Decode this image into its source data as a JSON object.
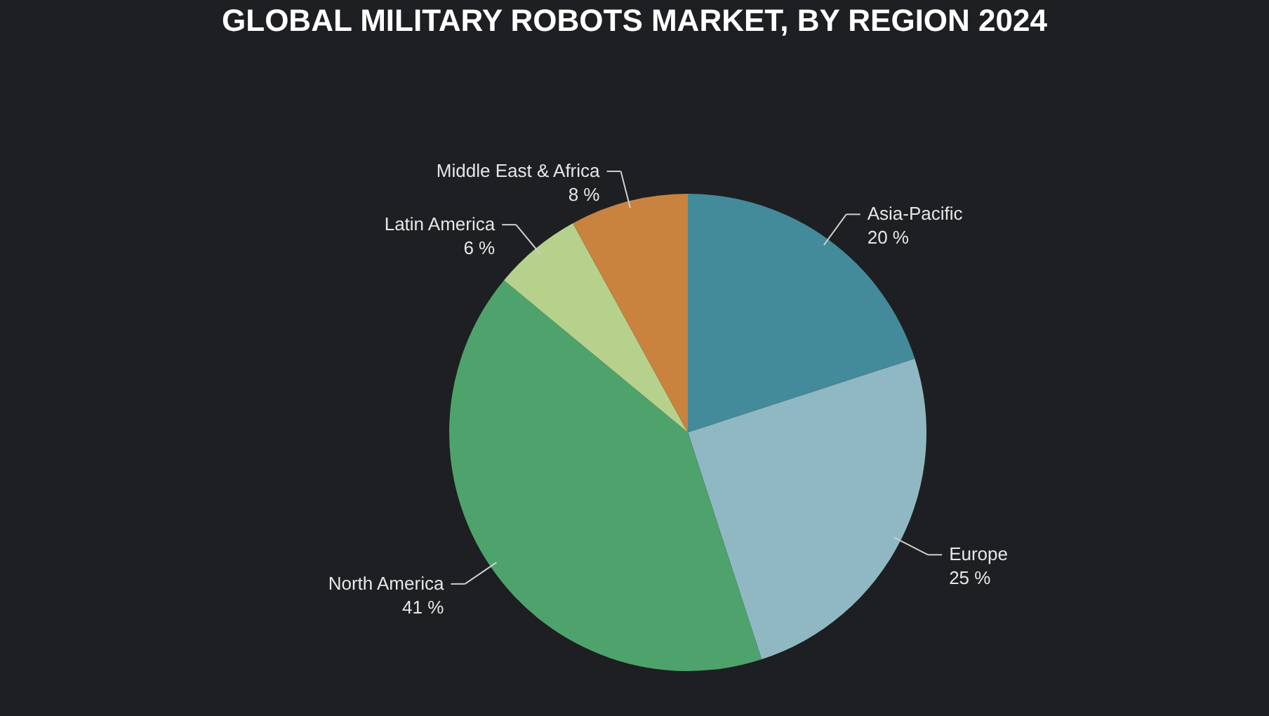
{
  "chart_data": {
    "type": "pie",
    "title": "GLOBAL MILITARY ROBOTS MARKET, BY REGION 2024",
    "categories": [
      "Asia-Pacific",
      "Europe",
      "North America",
      "Latin America",
      "Middle East & Africa"
    ],
    "values": [
      20,
      25,
      41,
      6,
      8
    ],
    "value_labels": [
      "20 %",
      "25 %",
      "41 %",
      "6 %",
      "8 %"
    ],
    "colors": [
      "#438a9b",
      "#8fb8c2",
      "#4ea36c",
      "#b6d18c",
      "#c9833f"
    ],
    "legend": false
  }
}
